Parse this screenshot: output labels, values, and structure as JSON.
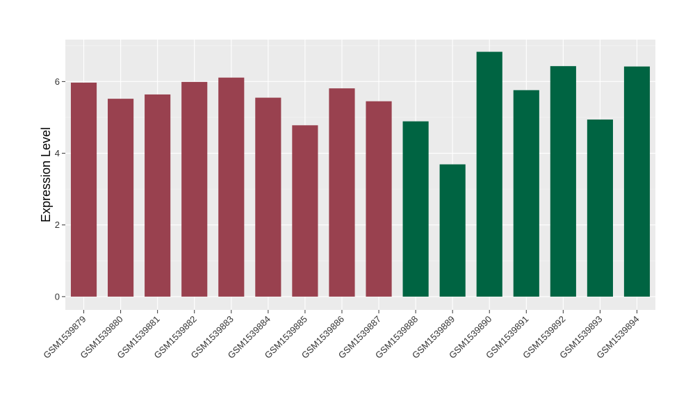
{
  "chart_data": {
    "type": "bar",
    "title": "",
    "xlabel": "",
    "ylabel": "Expression Level",
    "categories": [
      "GSM1539879",
      "GSM1539880",
      "GSM1539881",
      "GSM1539882",
      "GSM1539883",
      "GSM1539884",
      "GSM1539885",
      "GSM1539886",
      "GSM1539887",
      "GSM1539888",
      "GSM1539889",
      "GSM1539890",
      "GSM1539891",
      "GSM1539892",
      "GSM1539893",
      "GSM1539894"
    ],
    "values": [
      5.97,
      5.52,
      5.64,
      5.99,
      6.11,
      5.55,
      4.78,
      5.81,
      5.45,
      4.89,
      3.69,
      6.83,
      5.76,
      6.43,
      4.94,
      6.42
    ],
    "colors": [
      "#99414F",
      "#99414F",
      "#99414F",
      "#99414F",
      "#99414F",
      "#99414F",
      "#99414F",
      "#99414F",
      "#99414F",
      "#006442",
      "#006442",
      "#006442",
      "#006442",
      "#006442",
      "#006442",
      "#006442"
    ],
    "ylim": [
      -0.37,
      7.17
    ],
    "yticks": [
      0,
      2,
      4,
      6
    ],
    "grid": true,
    "legend": "none"
  }
}
